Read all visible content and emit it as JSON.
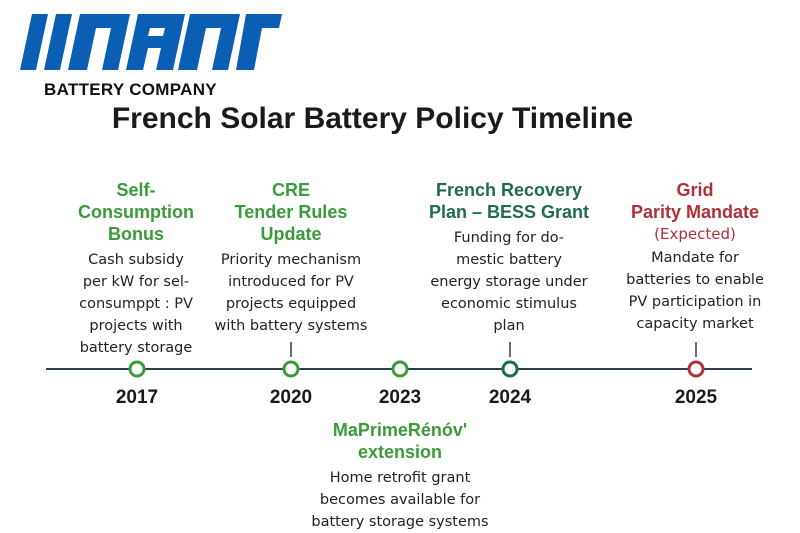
{
  "logo": {
    "text": "IIANIY",
    "color": "#0a5fb4"
  },
  "company": "BATTERY COMPANY",
  "title": "French Solar Battery Policy Timeline",
  "colors": {
    "green": "#3b9a3b",
    "teal": "#1e6b52",
    "red": "#b03038",
    "axis": "#2c3e50"
  },
  "events": [
    {
      "year": "2017",
      "head": [
        "Self-",
        "Consumption",
        "Bonus"
      ],
      "desc": [
        "Cash subsidy",
        "per kW for sel-",
        "consumppt : PV",
        "projects with",
        "battery storage"
      ]
    },
    {
      "year": "2020",
      "head": [
        "CRE",
        "Tender Rules",
        "Update"
      ],
      "desc": [
        "Priority mechanism",
        "introduced for PV",
        "projects equipped",
        "with battery systems"
      ]
    },
    {
      "year": "2023",
      "head": [
        "MaPrimeRénóv'",
        "extension"
      ],
      "desc": [
        "Home retrofit grant",
        "becomes available for",
        "battery storage systems"
      ]
    },
    {
      "year": "2024",
      "head": [
        "French Recovery",
        "Plan – BESS Grant"
      ],
      "desc": [
        "Funding for do-",
        "mestic battery",
        "energy storage under",
        "economic stimulus",
        "plan"
      ]
    },
    {
      "year": "2025",
      "head": [
        "Grid",
        "Parity Mandate"
      ],
      "note": "(Expected)",
      "desc": [
        "Mandate for",
        "batteries to enable",
        "PV participation in",
        "capacity market"
      ]
    }
  ]
}
